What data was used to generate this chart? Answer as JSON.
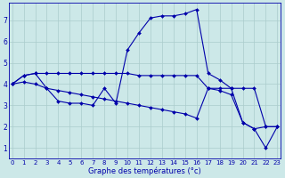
{
  "xlabel": "Graphe des températures (°c)",
  "background_color": "#cce8e8",
  "grid_color": "#aacccc",
  "line_color": "#0000aa",
  "ylim": [
    0.5,
    7.8
  ],
  "xlim": [
    -0.3,
    23.3
  ],
  "yticks": [
    1,
    2,
    3,
    4,
    5,
    6,
    7
  ],
  "xticks": [
    0,
    1,
    2,
    3,
    4,
    5,
    6,
    7,
    8,
    9,
    10,
    11,
    12,
    13,
    14,
    15,
    16,
    17,
    18,
    19,
    20,
    21,
    22,
    23
  ],
  "line1_x": [
    0,
    1,
    2,
    3,
    4,
    5,
    6,
    7,
    8,
    9,
    10,
    11,
    12,
    13,
    14,
    15,
    16,
    17,
    18,
    19,
    20,
    21,
    22,
    23
  ],
  "line1_y": [
    4.0,
    4.4,
    4.5,
    4.5,
    4.5,
    4.5,
    4.5,
    4.5,
    4.5,
    4.5,
    4.5,
    4.4,
    4.4,
    4.4,
    4.4,
    4.4,
    4.4,
    3.8,
    3.8,
    3.8,
    3.8,
    3.8,
    2.0,
    2.0
  ],
  "line2_x": [
    0,
    1,
    2,
    3,
    4,
    5,
    6,
    7,
    8,
    9,
    10,
    11,
    12,
    13,
    14,
    15,
    16,
    17,
    18,
    19,
    20,
    21,
    22,
    23
  ],
  "line2_y": [
    4.0,
    4.4,
    4.5,
    3.8,
    3.2,
    3.1,
    3.1,
    3.0,
    3.8,
    3.1,
    5.6,
    6.4,
    7.1,
    7.2,
    7.2,
    7.3,
    7.5,
    4.5,
    4.2,
    3.8,
    2.2,
    1.9,
    1.0,
    2.0
  ],
  "line3_x": [
    0,
    1,
    2,
    3,
    4,
    5,
    6,
    7,
    8,
    9,
    10,
    11,
    12,
    13,
    14,
    15,
    16,
    17,
    18,
    19,
    20,
    21,
    22,
    23
  ],
  "line3_y": [
    4.0,
    4.1,
    4.0,
    3.8,
    3.7,
    3.6,
    3.5,
    3.4,
    3.3,
    3.2,
    3.1,
    3.0,
    2.9,
    2.8,
    2.7,
    2.6,
    2.4,
    3.8,
    3.7,
    3.5,
    2.2,
    1.9,
    2.0,
    2.0
  ],
  "marker_size": 2.0,
  "line_width": 0.8,
  "tick_fontsize": 5.0,
  "xlabel_fontsize": 6.0
}
